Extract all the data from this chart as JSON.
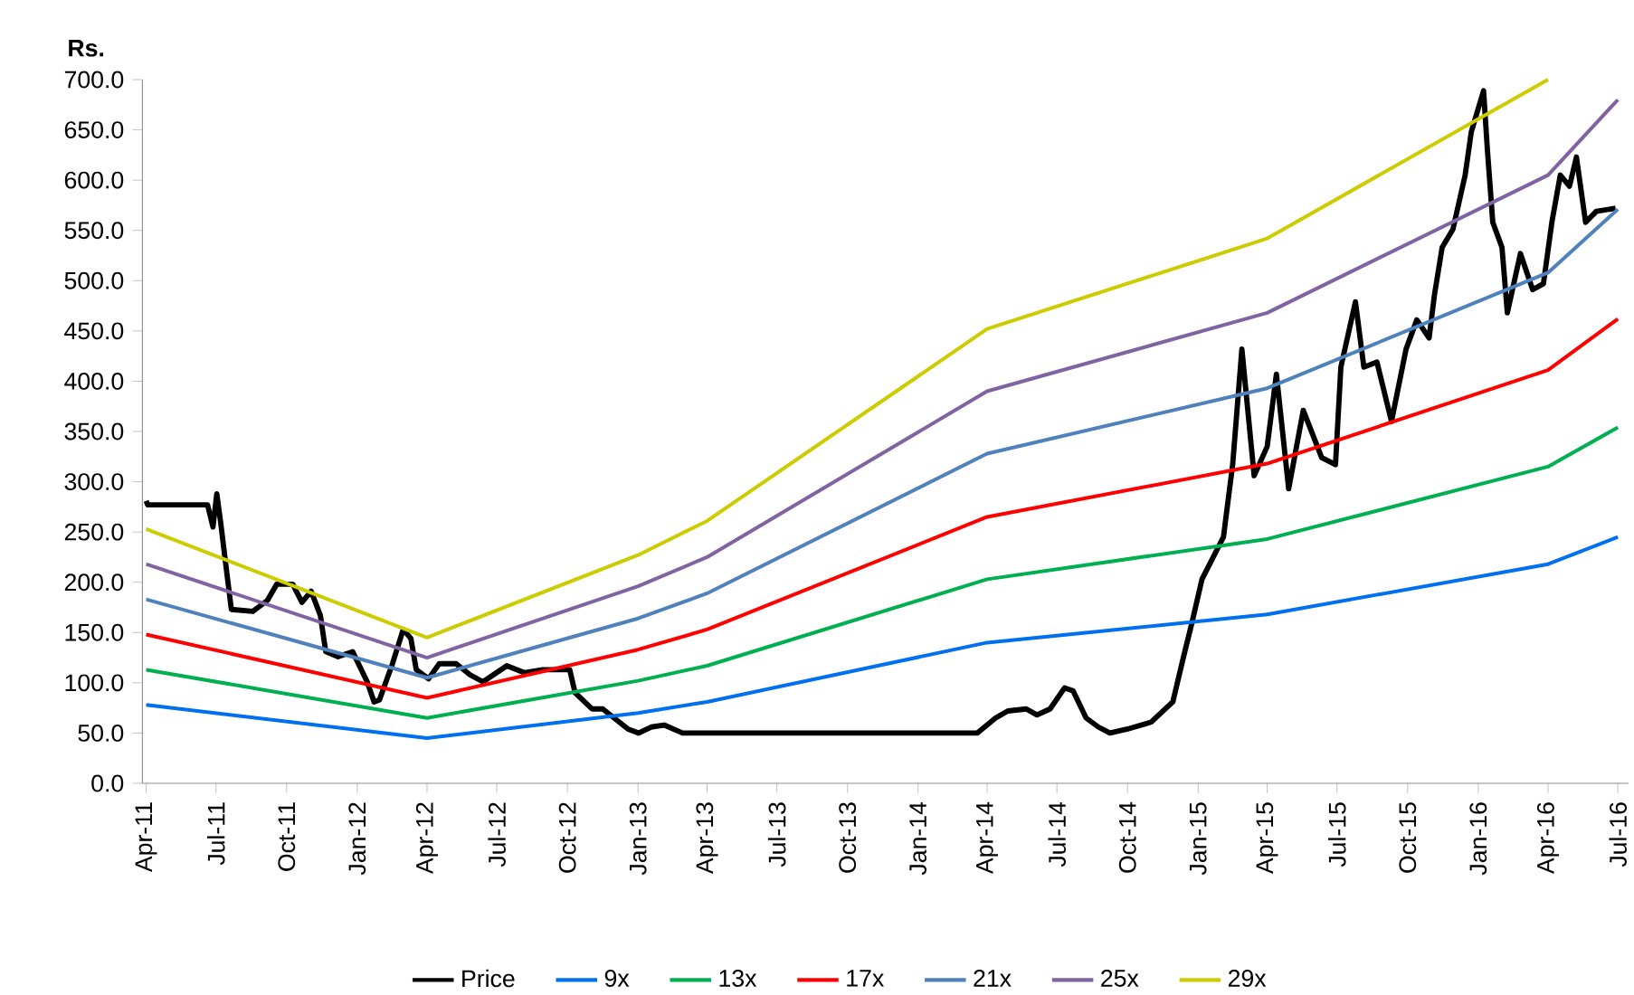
{
  "chart_data": {
    "type": "line",
    "ylabel": "Rs.",
    "legend": "bottom",
    "xlim": [
      "2011-03-27",
      "2016-07-15"
    ],
    "ylim": [
      0,
      700
    ],
    "yticks": [
      {
        "value": 0,
        "label": "0.0"
      },
      {
        "value": 50,
        "label": "50.0"
      },
      {
        "value": 100,
        "label": "100.0"
      },
      {
        "value": 150,
        "label": "150.0"
      },
      {
        "value": 200,
        "label": "200.0"
      },
      {
        "value": 250,
        "label": "250.0"
      },
      {
        "value": 300,
        "label": "300.0"
      },
      {
        "value": 350,
        "label": "350.0"
      },
      {
        "value": 400,
        "label": "400.0"
      },
      {
        "value": 450,
        "label": "450.0"
      },
      {
        "value": 500,
        "label": "500.0"
      },
      {
        "value": 550,
        "label": "550.0"
      },
      {
        "value": 600,
        "label": "600.0"
      },
      {
        "value": 650,
        "label": "650.0"
      },
      {
        "value": 700,
        "label": "700.0"
      }
    ],
    "xticks": [
      {
        "value": "2011-04-01",
        "label": "Apr-11"
      },
      {
        "value": "2011-07-01",
        "label": "Jul-11"
      },
      {
        "value": "2011-10-01",
        "label": "Oct-11"
      },
      {
        "value": "2012-01-01",
        "label": "Jan-12"
      },
      {
        "value": "2012-04-01",
        "label": "Apr-12"
      },
      {
        "value": "2012-07-01",
        "label": "Jul-12"
      },
      {
        "value": "2012-10-01",
        "label": "Oct-12"
      },
      {
        "value": "2013-01-01",
        "label": "Jan-13"
      },
      {
        "value": "2013-04-01",
        "label": "Apr-13"
      },
      {
        "value": "2013-07-01",
        "label": "Jul-13"
      },
      {
        "value": "2013-10-01",
        "label": "Oct-13"
      },
      {
        "value": "2014-01-01",
        "label": "Jan-14"
      },
      {
        "value": "2014-04-01",
        "label": "Apr-14"
      },
      {
        "value": "2014-07-01",
        "label": "Jul-14"
      },
      {
        "value": "2014-10-01",
        "label": "Oct-14"
      },
      {
        "value": "2015-01-01",
        "label": "Jan-15"
      },
      {
        "value": "2015-04-01",
        "label": "Apr-15"
      },
      {
        "value": "2015-07-01",
        "label": "Jul-15"
      },
      {
        "value": "2015-10-01",
        "label": "Oct-15"
      },
      {
        "value": "2016-01-01",
        "label": "Jan-16"
      },
      {
        "value": "2016-04-01",
        "label": "Apr-16"
      },
      {
        "value": "2016-07-01",
        "label": "Jul-16"
      }
    ],
    "series": [
      {
        "name": "Price",
        "color": "#000000",
        "x": [
          "2011-04-01",
          "2011-04-03",
          "2011-06-20",
          "2011-06-27",
          "2011-07-02",
          "2011-07-07",
          "2011-07-14",
          "2011-07-21",
          "2011-08-18",
          "2011-09-06",
          "2011-09-18",
          "2011-10-09",
          "2011-10-21",
          "2011-11-02",
          "2011-11-14",
          "2011-11-21",
          "2011-12-07",
          "2011-12-26",
          "2012-01-14",
          "2012-01-23",
          "2012-01-30",
          "2012-02-16",
          "2012-03-01",
          "2012-03-11",
          "2012-03-18",
          "2012-04-03",
          "2012-04-17",
          "2012-05-09",
          "2012-05-27",
          "2012-06-13",
          "2012-07-14",
          "2012-08-06",
          "2012-08-30",
          "2012-10-04",
          "2012-10-11",
          "2012-11-02",
          "2012-11-16",
          "2012-12-19",
          "2013-01-02",
          "2013-01-18",
          "2013-02-04",
          "2013-02-28",
          "2014-03-19",
          "2014-04-12",
          "2014-04-28",
          "2014-05-22",
          "2014-06-05",
          "2014-06-22",
          "2014-07-11",
          "2014-07-22",
          "2014-08-08",
          "2014-08-24",
          "2014-09-08",
          "2014-10-01",
          "2014-11-01",
          "2014-11-29",
          "2014-12-13",
          "2014-12-24",
          "2015-01-06",
          "2015-02-03",
          "2015-02-15",
          "2015-02-27",
          "2015-03-15",
          "2015-04-01",
          "2015-04-13",
          "2015-04-29",
          "2015-05-18",
          "2015-06-11",
          "2015-06-29",
          "2015-07-06",
          "2015-07-25",
          "2015-08-05",
          "2015-08-22",
          "2015-09-10",
          "2015-09-29",
          "2015-10-13",
          "2015-10-29",
          "2015-11-05",
          "2015-11-15",
          "2015-11-29",
          "2015-12-15",
          "2015-12-23",
          "2016-01-08",
          "2016-01-13",
          "2016-01-20",
          "2016-02-01",
          "2016-02-08",
          "2016-02-25",
          "2016-03-12",
          "2016-03-26",
          "2016-04-06",
          "2016-04-17",
          "2016-04-29",
          "2016-05-08",
          "2016-05-20",
          "2016-06-03",
          "2016-06-28"
        ],
        "values": [
          281,
          277,
          277,
          255,
          288,
          260,
          216,
          173,
          171,
          182,
          198,
          198,
          180,
          191,
          167,
          131,
          126,
          131,
          101,
          81,
          83,
          119,
          153,
          144,
          113,
          104,
          119,
          119,
          108,
          101,
          117,
          110,
          113,
          113,
          90,
          74,
          74,
          54,
          50,
          56,
          58,
          50,
          50,
          65,
          72,
          74,
          68,
          74,
          95,
          92,
          65,
          56,
          50,
          54,
          61,
          81,
          126,
          160,
          203,
          245,
          317,
          432,
          306,
          335,
          407,
          293,
          371,
          324,
          317,
          414,
          479,
          414,
          419,
          360,
          432,
          461,
          443,
          486,
          533,
          551,
          605,
          648,
          689,
          630,
          558,
          533,
          468,
          527,
          491,
          497,
          558,
          605,
          594,
          623,
          558,
          569,
          572
        ]
      },
      {
        "name": "9x",
        "color": "#0070f0",
        "x": [
          "2011-04-01",
          "2012-04-01",
          "2013-01-01",
          "2013-04-01",
          "2014-04-01",
          "2015-04-01",
          "2016-04-01",
          "2016-07-01"
        ],
        "values": [
          78,
          45,
          70,
          81,
          140,
          168,
          218,
          245
        ]
      },
      {
        "name": "13x",
        "color": "#00b050",
        "x": [
          "2011-04-01",
          "2012-04-01",
          "2013-01-01",
          "2013-04-01",
          "2014-04-01",
          "2015-04-01",
          "2016-04-01",
          "2016-07-01"
        ],
        "values": [
          113,
          65,
          102,
          117,
          203,
          243,
          315,
          354
        ]
      },
      {
        "name": "17x",
        "color": "#ff0000",
        "x": [
          "2011-04-01",
          "2012-04-01",
          "2013-01-01",
          "2013-04-01",
          "2014-04-01",
          "2015-04-01",
          "2016-04-01",
          "2016-07-01"
        ],
        "values": [
          148,
          85,
          133,
          153,
          265,
          318,
          411,
          462
        ]
      },
      {
        "name": "21x",
        "color": "#4f81bd",
        "x": [
          "2011-04-01",
          "2012-04-01",
          "2013-01-01",
          "2013-04-01",
          "2014-04-01",
          "2015-04-01",
          "2016-04-01",
          "2016-07-01"
        ],
        "values": [
          183,
          105,
          164,
          189,
          328,
          393,
          508,
          571
        ]
      },
      {
        "name": "25x",
        "color": "#8064a2",
        "x": [
          "2011-04-01",
          "2012-04-01",
          "2013-01-01",
          "2013-04-01",
          "2014-04-01",
          "2015-04-01",
          "2016-04-01",
          "2016-07-01"
        ],
        "values": [
          218,
          125,
          196,
          225,
          390,
          468,
          605,
          680
        ]
      },
      {
        "name": "29x",
        "color": "#cccc00",
        "x": [
          "2011-04-01",
          "2012-04-01",
          "2013-01-01",
          "2013-04-01",
          "2014-04-01",
          "2015-04-01",
          "2016-04-01"
        ],
        "values": [
          253,
          145,
          227,
          261,
          452,
          542,
          700
        ]
      }
    ]
  }
}
